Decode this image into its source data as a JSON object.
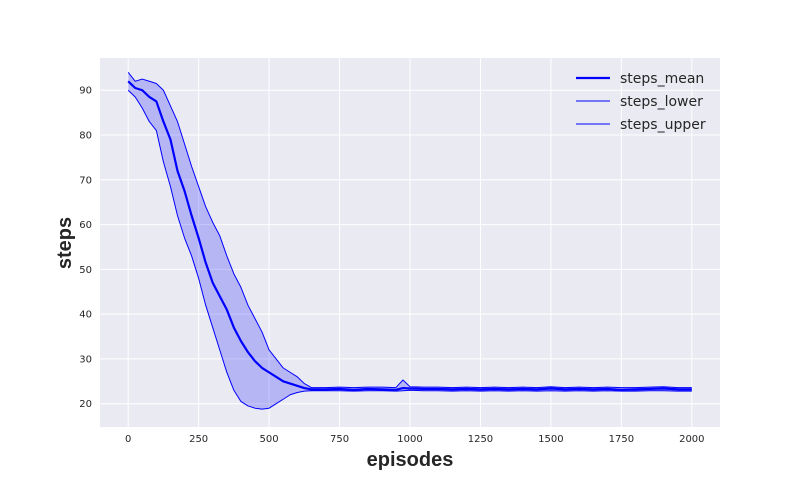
{
  "chart_data": {
    "type": "line",
    "title": "",
    "xlabel": "episodes",
    "ylabel": "steps",
    "xlim": [
      -100,
      2100
    ],
    "ylim": [
      14.8,
      97.2
    ],
    "xticks": [
      0,
      250,
      500,
      750,
      1000,
      1250,
      1500,
      1750,
      2000
    ],
    "yticks": [
      20,
      30,
      40,
      50,
      60,
      70,
      80,
      90
    ],
    "grid": true,
    "legend_position": "top-right",
    "colors": {
      "line": "#0000ff",
      "band": "#0000ff",
      "background": "#eaeaf2",
      "grid": "#ffffff"
    },
    "x": [
      0,
      25,
      50,
      75,
      100,
      125,
      150,
      175,
      200,
      225,
      250,
      275,
      300,
      325,
      350,
      375,
      400,
      425,
      450,
      475,
      500,
      525,
      550,
      575,
      600,
      625,
      650,
      700,
      750,
      800,
      850,
      900,
      950,
      975,
      1000,
      1050,
      1100,
      1150,
      1200,
      1250,
      1300,
      1350,
      1400,
      1450,
      1500,
      1550,
      1600,
      1650,
      1700,
      1750,
      1800,
      1850,
      1900,
      1950,
      2000
    ],
    "series": [
      {
        "name": "steps_mean",
        "role": "mean",
        "values": [
          92,
          90.5,
          90,
          88.5,
          87.5,
          83,
          79,
          72,
          67.5,
          62,
          57,
          51.5,
          47,
          44,
          41,
          37,
          34,
          31.5,
          29.5,
          28,
          27,
          26,
          25,
          24.5,
          24,
          23.5,
          23.2,
          23.2,
          23.3,
          23.1,
          23.3,
          23.2,
          23.1,
          23.5,
          23.4,
          23.3,
          23.3,
          23.2,
          23.3,
          23.2,
          23.3,
          23.2,
          23.3,
          23.2,
          23.4,
          23.2,
          23.3,
          23.2,
          23.3,
          23.1,
          23.2,
          23.3,
          23.4,
          23.2,
          23.2
        ]
      },
      {
        "name": "steps_lower",
        "role": "lower",
        "values": [
          90,
          88.5,
          86,
          83,
          81,
          74,
          68.5,
          62,
          57,
          53,
          48,
          42,
          37,
          32,
          27,
          23,
          20.5,
          19.5,
          19,
          18.8,
          19,
          20,
          21,
          22,
          22.5,
          22.8,
          22.9,
          22.9,
          22.9,
          22.8,
          22.9,
          22.9,
          22.8,
          22.9,
          23.0,
          22.9,
          22.9,
          22.8,
          22.9,
          22.8,
          22.9,
          22.8,
          22.9,
          22.8,
          22.9,
          22.8,
          22.9,
          22.8,
          22.9,
          22.8,
          22.8,
          22.9,
          22.9,
          22.8,
          22.8
        ]
      },
      {
        "name": "steps_upper",
        "role": "upper",
        "values": [
          94,
          92,
          92.5,
          92,
          91.5,
          90,
          86.5,
          83,
          78,
          73,
          68.5,
          64,
          60.5,
          57.5,
          53,
          49,
          46,
          42,
          39,
          36,
          32,
          30,
          28,
          27,
          26,
          24.5,
          23.6,
          23.6,
          23.7,
          23.6,
          23.7,
          23.7,
          23.6,
          25.3,
          23.8,
          23.7,
          23.7,
          23.6,
          23.7,
          23.6,
          23.7,
          23.6,
          23.7,
          23.6,
          23.8,
          23.6,
          23.7,
          23.6,
          23.7,
          23.6,
          23.6,
          23.7,
          23.8,
          23.6,
          23.6
        ]
      }
    ]
  }
}
